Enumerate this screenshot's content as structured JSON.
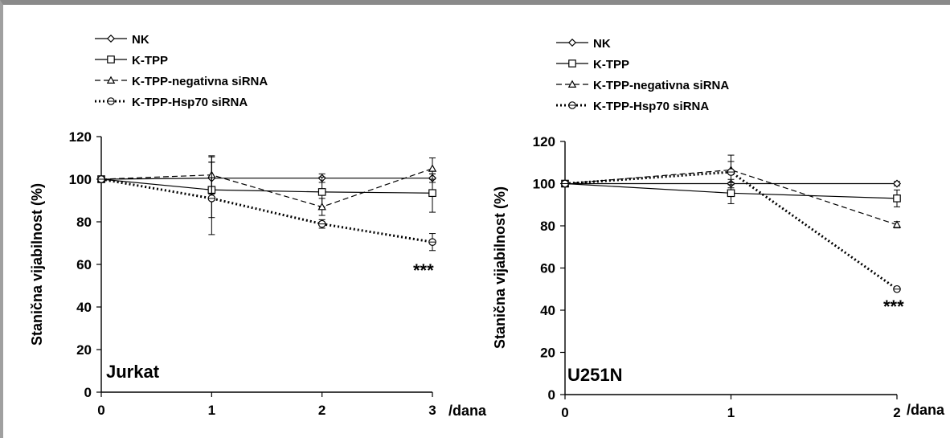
{
  "chart_data": [
    {
      "type": "line",
      "panel_label": "Jurkat",
      "xlabel": "/dana",
      "ylabel": "Stanična vijabilnost (%)",
      "x": [
        0,
        1,
        2,
        3
      ],
      "xlim": [
        0,
        3
      ],
      "ylim": [
        0,
        120
      ],
      "xticks": [
        "0",
        "1",
        "2",
        "3"
      ],
      "yticks": [
        "0",
        "20",
        "40",
        "60",
        "80",
        "100",
        "120"
      ],
      "grid": false,
      "legend_position": "top-left",
      "annotation": "***",
      "series": [
        {
          "name": "NK",
          "values": [
            100,
            100.5,
            100.5,
            100.5
          ],
          "errors": [
            0,
            10,
            2,
            2
          ],
          "line": "solid",
          "marker": "diamond"
        },
        {
          "name": "K-TPP",
          "values": [
            100,
            95,
            94,
            93.5
          ],
          "errors": [
            0,
            13,
            7,
            9
          ],
          "line": "solid",
          "marker": "square"
        },
        {
          "name": "K-TPP-negativna siRNA",
          "values": [
            100,
            102,
            87,
            105
          ],
          "errors": [
            0,
            9,
            4,
            5
          ],
          "line": "dashed",
          "marker": "triangle"
        },
        {
          "name": "K-TPP-Hsp70 siRNA",
          "values": [
            100,
            91,
            79,
            70.5
          ],
          "errors": [
            0,
            17,
            2,
            4
          ],
          "line": "dotted",
          "marker": "circle"
        }
      ]
    },
    {
      "type": "line",
      "panel_label": "U251N",
      "xlabel": "/dana",
      "ylabel": "Stanična vijabilnost (%)",
      "x": [
        0,
        1,
        2
      ],
      "xlim": [
        0,
        2
      ],
      "ylim": [
        0,
        120
      ],
      "xticks": [
        "0",
        "1",
        "2"
      ],
      "yticks": [
        "0",
        "20",
        "40",
        "60",
        "80",
        "100",
        "120"
      ],
      "grid": false,
      "legend_position": "top-left",
      "annotation": "***",
      "series": [
        {
          "name": "NK",
          "values": [
            100,
            100,
            100
          ],
          "errors": [
            0,
            2,
            1
          ],
          "line": "solid",
          "marker": "diamond"
        },
        {
          "name": "K-TPP",
          "values": [
            100,
            95.5,
            93
          ],
          "errors": [
            0,
            5,
            4
          ],
          "line": "solid",
          "marker": "square"
        },
        {
          "name": "K-TPP-negativna siRNA",
          "values": [
            100,
            106.5,
            80.5
          ],
          "errors": [
            0,
            7,
            1.5
          ],
          "line": "dashed",
          "marker": "triangle"
        },
        {
          "name": "K-TPP-Hsp70 siRNA",
          "values": [
            100,
            105.5,
            50
          ],
          "errors": [
            0,
            5,
            0.5
          ],
          "line": "dotted",
          "marker": "circle"
        }
      ]
    }
  ]
}
